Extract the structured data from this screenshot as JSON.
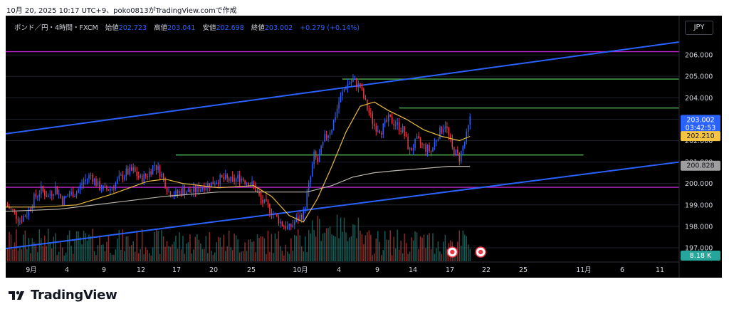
{
  "caption": "10月 20, 2025 10:17 UTC+9、poko0813がTradingView.comで作成",
  "header": {
    "symbol": "ポンド／円・4時間・FXCM",
    "open_label": "始値",
    "open": "202.723",
    "high_label": "高値",
    "high": "203.041",
    "low_label": "安値",
    "low": "202.698",
    "close_label": "終値",
    "close": "203.002",
    "change": "+0.279 (+0.14%)"
  },
  "currency_button": "JPY",
  "price_axis": {
    "ticks": [
      "206.000",
      "205.000",
      "204.000",
      "203.000",
      "202.000",
      "201.000",
      "200.000",
      "199.000",
      "198.000",
      "197.000"
    ],
    "current_price": "203.002",
    "countdown": "03:42:53",
    "ma_fast_value": "202.210",
    "ma_slow_value": "200.828",
    "volume_label": "8.18 K"
  },
  "time_axis": {
    "labels": [
      "9月",
      "4",
      "9",
      "12",
      "17",
      "20",
      "25",
      "10月",
      "4",
      "9",
      "14",
      "17",
      "22",
      "25",
      "11月",
      "6",
      "11"
    ]
  },
  "colors": {
    "up": "#2962ff",
    "down": "#f23645",
    "ma_fast": "#e8b93b",
    "ma_slow": "#b8b3aa",
    "trendline": "#2962ff",
    "horizontal_purple": "#c026d3",
    "horizontal_green": "#4caf50",
    "vol_up": "#26a69a",
    "vol_down": "#ef5350",
    "current_badge": "#2962ff",
    "ma_fast_badge": "#f5c542",
    "ma_slow_badge": "#9e9e9e",
    "volume_badge": "#26a69a"
  },
  "icons": [
    "event-marker-icon",
    "event-marker-icon"
  ],
  "footer": {
    "brand": "TradingView",
    "logo_icon": "tradingview-logo-icon"
  },
  "chart_data": {
    "type": "candlestick",
    "title": "ポンド／円・4時間・FXCM",
    "xlabel": "",
    "ylabel": "",
    "ylim": [
      196.5,
      206.9
    ],
    "grid": true,
    "close_path": [
      [
        0,
        199.0
      ],
      [
        4,
        198.7
      ],
      [
        8,
        198.3
      ],
      [
        12,
        198.6
      ],
      [
        16,
        199.3
      ],
      [
        20,
        199.7
      ],
      [
        24,
        199.4
      ],
      [
        28,
        199.8
      ],
      [
        32,
        199.2
      ],
      [
        36,
        199.5
      ],
      [
        40,
        199.6
      ],
      [
        44,
        200.1
      ],
      [
        48,
        200.4
      ],
      [
        52,
        199.9
      ],
      [
        56,
        199.7
      ],
      [
        60,
        199.8
      ],
      [
        64,
        200.2
      ],
      [
        68,
        200.5
      ],
      [
        72,
        200.6
      ],
      [
        76,
        200.2
      ],
      [
        80,
        200.4
      ],
      [
        84,
        200.9
      ],
      [
        88,
        200.4
      ],
      [
        92,
        199.6
      ],
      [
        96,
        199.5
      ],
      [
        100,
        199.7
      ],
      [
        104,
        199.6
      ],
      [
        108,
        199.7
      ],
      [
        112,
        199.9
      ],
      [
        116,
        200.0
      ],
      [
        120,
        200.2
      ],
      [
        124,
        200.2
      ],
      [
        128,
        200.1
      ],
      [
        132,
        200.3
      ],
      [
        136,
        200.1
      ],
      [
        140,
        199.9
      ],
      [
        144,
        199.2
      ],
      [
        148,
        198.9
      ],
      [
        152,
        198.5
      ],
      [
        156,
        198.1
      ],
      [
        160,
        197.9
      ],
      [
        164,
        198.3
      ],
      [
        168,
        198.6
      ],
      [
        172,
        200.3
      ],
      [
        174,
        201.3
      ],
      [
        176,
        201.0
      ],
      [
        180,
        202.1
      ],
      [
        184,
        202.6
      ],
      [
        188,
        203.8
      ],
      [
        192,
        204.6
      ],
      [
        196,
        204.8
      ],
      [
        200,
        204.5
      ],
      [
        204,
        203.5
      ],
      [
        208,
        202.7
      ],
      [
        212,
        202.5
      ],
      [
        216,
        203.0
      ],
      [
        220,
        202.8
      ],
      [
        224,
        202.5
      ],
      [
        228,
        201.5
      ],
      [
        232,
        202.0
      ],
      [
        236,
        201.7
      ],
      [
        240,
        201.5
      ],
      [
        244,
        202.3
      ],
      [
        248,
        202.8
      ],
      [
        252,
        201.6
      ],
      [
        256,
        201.2
      ],
      [
        260,
        202.2
      ],
      [
        262,
        203.0
      ]
    ],
    "ma_fast": [
      [
        0,
        198.9
      ],
      [
        20,
        198.9
      ],
      [
        40,
        199.0
      ],
      [
        60,
        199.5
      ],
      [
        80,
        200.1
      ],
      [
        90,
        200.2
      ],
      [
        100,
        200.0
      ],
      [
        120,
        199.8
      ],
      [
        140,
        199.9
      ],
      [
        150,
        199.4
      ],
      [
        160,
        198.5
      ],
      [
        168,
        198.2
      ],
      [
        176,
        199.3
      ],
      [
        184,
        200.8
      ],
      [
        192,
        202.4
      ],
      [
        200,
        203.6
      ],
      [
        208,
        203.8
      ],
      [
        216,
        203.4
      ],
      [
        226,
        203.0
      ],
      [
        236,
        202.5
      ],
      [
        246,
        202.2
      ],
      [
        256,
        202.0
      ],
      [
        262,
        202.2
      ]
    ],
    "ma_slow": [
      [
        0,
        198.7
      ],
      [
        30,
        198.8
      ],
      [
        60,
        199.1
      ],
      [
        90,
        199.4
      ],
      [
        120,
        199.6
      ],
      [
        150,
        199.6
      ],
      [
        170,
        199.6
      ],
      [
        184,
        199.9
      ],
      [
        196,
        200.3
      ],
      [
        208,
        200.5
      ],
      [
        220,
        200.6
      ],
      [
        236,
        200.7
      ],
      [
        250,
        200.8
      ],
      [
        262,
        200.8
      ]
    ],
    "trendlines": [
      {
        "name": "upper-channel",
        "p1": [
          0,
          202.32
        ],
        "p2": [
          380,
          206.6
        ]
      },
      {
        "name": "lower-channel",
        "p1": [
          0,
          196.96
        ],
        "p2": [
          380,
          201.0
        ]
      }
    ],
    "horizontal_levels": [
      {
        "price": 206.15,
        "color": "purple",
        "from": 0,
        "to": 380
      },
      {
        "price": 199.82,
        "color": "purple",
        "from": 0,
        "to": 380
      },
      {
        "price": 204.87,
        "color": "green",
        "from": 190,
        "to": 380
      },
      {
        "price": 203.52,
        "color": "green",
        "from": 222,
        "to": 380
      },
      {
        "price": 201.33,
        "color": "green",
        "from": 96,
        "to": 326
      }
    ]
  }
}
